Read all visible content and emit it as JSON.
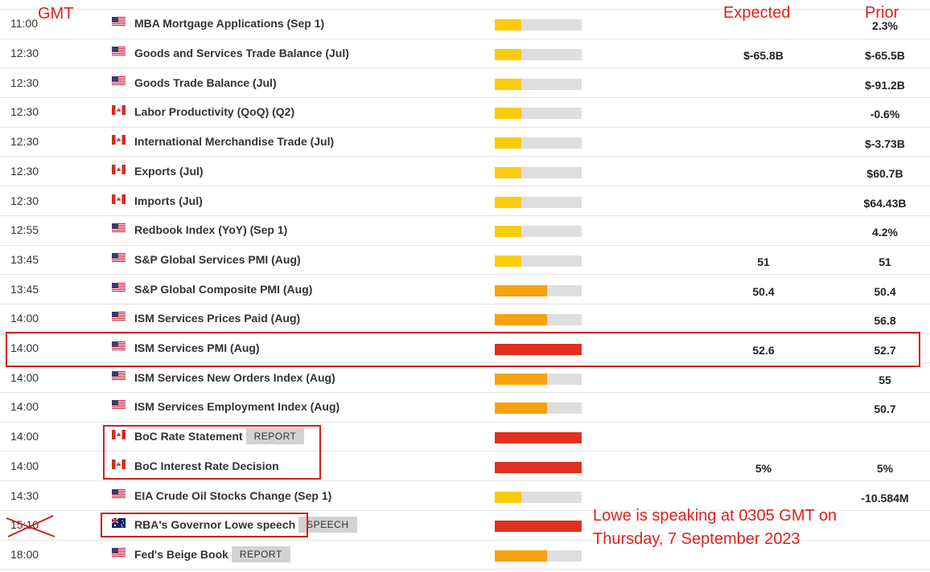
{
  "annotations": {
    "gmt": "GMT",
    "expected": "Expected",
    "prior": "Prior",
    "note_line1": "Lowe is speaking at 0305 GMT on",
    "note_line2": "Thursday, 7 September 2023"
  },
  "rows": [
    {
      "time": "11:00",
      "flag": "us",
      "event": "MBA Mortgage Applications (Sep 1)",
      "impact": "low",
      "prior": "2.3%"
    },
    {
      "time": "12:30",
      "flag": "us",
      "event": "Goods and Services Trade Balance (Jul)",
      "impact": "low",
      "expected": "$-65.8B",
      "prior": "$-65.5B"
    },
    {
      "time": "12:30",
      "flag": "us",
      "event": "Goods Trade Balance (Jul)",
      "impact": "low",
      "prior": "$-91.2B"
    },
    {
      "time": "12:30",
      "flag": "ca",
      "event": "Labor Productivity (QoQ) (Q2)",
      "impact": "low",
      "prior": "-0.6%"
    },
    {
      "time": "12:30",
      "flag": "ca",
      "event": "International Merchandise Trade (Jul)",
      "impact": "low",
      "prior": "$-3.73B"
    },
    {
      "time": "12:30",
      "flag": "ca",
      "event": "Exports (Jul)",
      "impact": "low",
      "prior": "$60.7B"
    },
    {
      "time": "12:30",
      "flag": "ca",
      "event": "Imports (Jul)",
      "impact": "low",
      "prior": "$64.43B"
    },
    {
      "time": "12:55",
      "flag": "us",
      "event": "Redbook Index (YoY) (Sep 1)",
      "impact": "low",
      "prior": "4.2%"
    },
    {
      "time": "13:45",
      "flag": "us",
      "event": "S&P Global Services PMI (Aug)",
      "impact": "low",
      "expected": "51",
      "prior": "51"
    },
    {
      "time": "13:45",
      "flag": "us",
      "event": "S&P Global Composite PMI (Aug)",
      "impact": "medium",
      "expected": "50.4",
      "prior": "50.4"
    },
    {
      "time": "14:00",
      "flag": "us",
      "event": "ISM Services Prices Paid (Aug)",
      "impact": "medium",
      "prior": "56.8"
    },
    {
      "time": "14:00",
      "flag": "us",
      "event": "ISM Services PMI (Aug)",
      "impact": "high",
      "expected": "52.6",
      "prior": "52.7"
    },
    {
      "time": "14:00",
      "flag": "us",
      "event": "ISM Services New Orders Index (Aug)",
      "impact": "medium",
      "prior": "55"
    },
    {
      "time": "14:00",
      "flag": "us",
      "event": "ISM Services Employment Index (Aug)",
      "impact": "medium",
      "prior": "50.7"
    },
    {
      "time": "14:00",
      "flag": "ca",
      "event": "BoC Rate Statement",
      "badge": "REPORT",
      "impact": "high"
    },
    {
      "time": "14:00",
      "flag": "ca",
      "event": "BoC Interest Rate Decision",
      "impact": "high",
      "expected": "5%",
      "prior": "5%"
    },
    {
      "time": "14:30",
      "flag": "us",
      "event": "EIA Crude Oil Stocks Change (Sep 1)",
      "impact": "low",
      "prior": "-10.584M"
    },
    {
      "time": "15:10",
      "flag": "au",
      "event": "RBA's Governor Lowe speech",
      "badge": "SPEECH",
      "impact": "high"
    },
    {
      "time": "18:00",
      "flag": "us",
      "event": "Fed's Beige Book",
      "badge": "REPORT",
      "impact": "medium"
    }
  ]
}
